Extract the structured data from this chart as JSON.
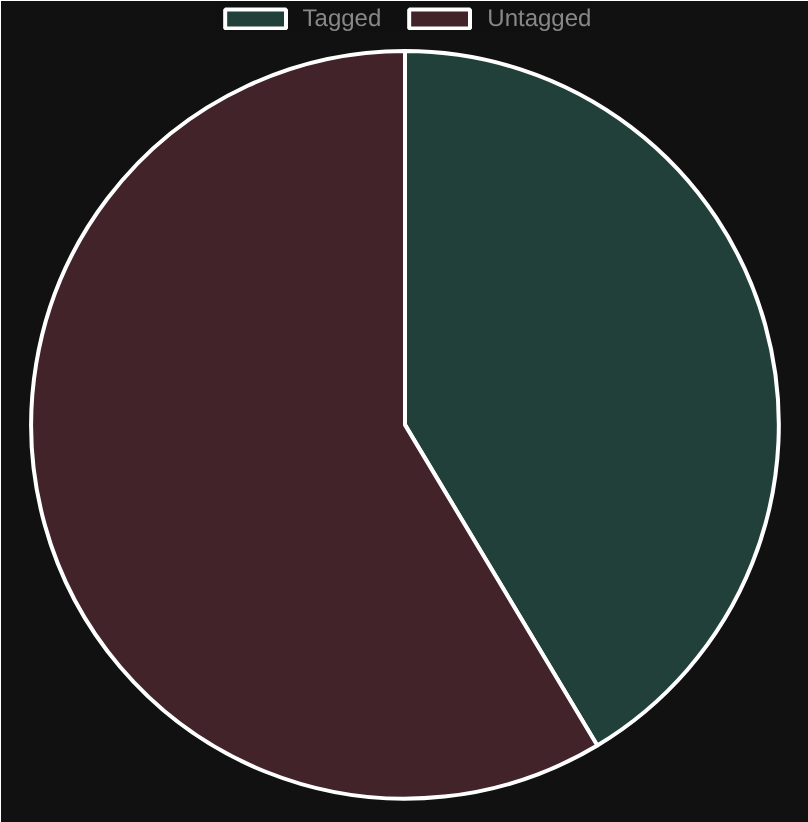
{
  "chart_data": {
    "type": "pie",
    "categories": [
      "Tagged",
      "Untagged"
    ],
    "values": [
      41.4,
      58.6
    ],
    "colors": [
      "#22403a",
      "#42232a"
    ],
    "legend": "top"
  }
}
